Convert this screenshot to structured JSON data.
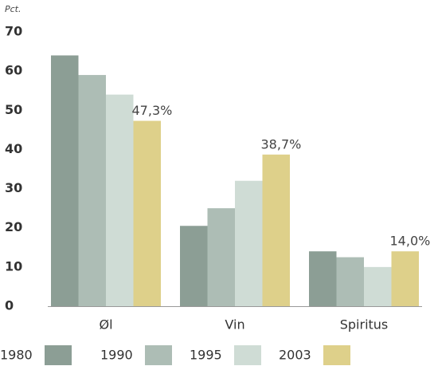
{
  "chart_data": {
    "type": "bar",
    "y_label": "Pct.",
    "categories": [
      "Øl",
      "Vin",
      "Spiritus"
    ],
    "series": [
      {
        "name": "1980",
        "color": "#8c9e95",
        "values": [
          64,
          20.5,
          14
        ]
      },
      {
        "name": "1990",
        "color": "#adbdb5",
        "values": [
          59,
          25,
          12.5
        ]
      },
      {
        "name": "1995",
        "color": "#cfdcd5",
        "values": [
          54,
          32,
          10
        ]
      },
      {
        "name": "2003",
        "color": "#ded08a",
        "values": [
          47.3,
          38.7,
          14.0
        ],
        "value_labels": [
          "47,3%",
          "38,7%",
          "14,0%"
        ]
      }
    ],
    "ylim": [
      0,
      70
    ],
    "yticks": [
      0,
      10,
      20,
      30,
      40,
      50,
      60,
      70
    ],
    "grid": false,
    "legend": "bottom"
  }
}
